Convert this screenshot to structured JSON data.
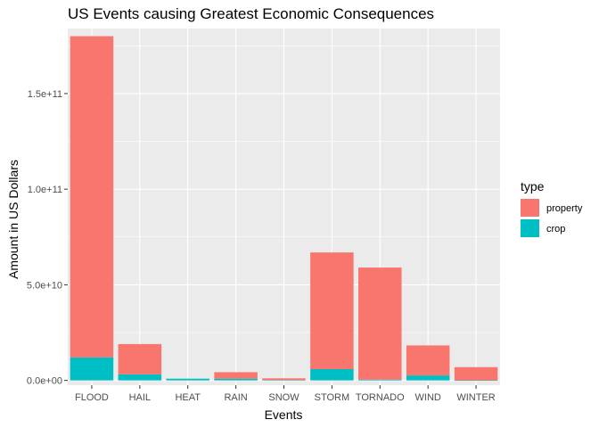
{
  "chart_data": {
    "type": "bar",
    "stacked": true,
    "title": "US Events causing Greatest Economic Consequences",
    "xlabel": "Events",
    "ylabel": "Amount in US Dollars",
    "categories": [
      "FLOOD",
      "HAIL",
      "HEAT",
      "RAIN",
      "SNOW",
      "STORM",
      "TORNADO",
      "WIND",
      "WINTER"
    ],
    "series": [
      {
        "name": "crop",
        "color": "#00BFC4",
        "values": [
          12000000000,
          3200000000,
          900000000,
          900000000,
          150000000,
          5900000000,
          420000000,
          2600000000,
          40000000
        ]
      },
      {
        "name": "property",
        "color": "#F8766D",
        "values": [
          168000000000,
          15800000000,
          0,
          3400000000,
          950000000,
          61000000000,
          58600000000,
          15700000000,
          6900000000
        ]
      }
    ],
    "ylim": [
      -2500000000,
      184000000000
    ],
    "yticks": [
      0,
      50000000000,
      100000000000,
      150000000000
    ],
    "ytick_labels": [
      "0.0e+00",
      "5.0e+10",
      "1.0e+11",
      "1.5e+11"
    ],
    "grid": true,
    "legend": {
      "title": "type",
      "position": "right",
      "entries": [
        "property",
        "crop"
      ]
    },
    "panel_background": "#EBEBEB",
    "grid_color": "#FFFFFF"
  }
}
